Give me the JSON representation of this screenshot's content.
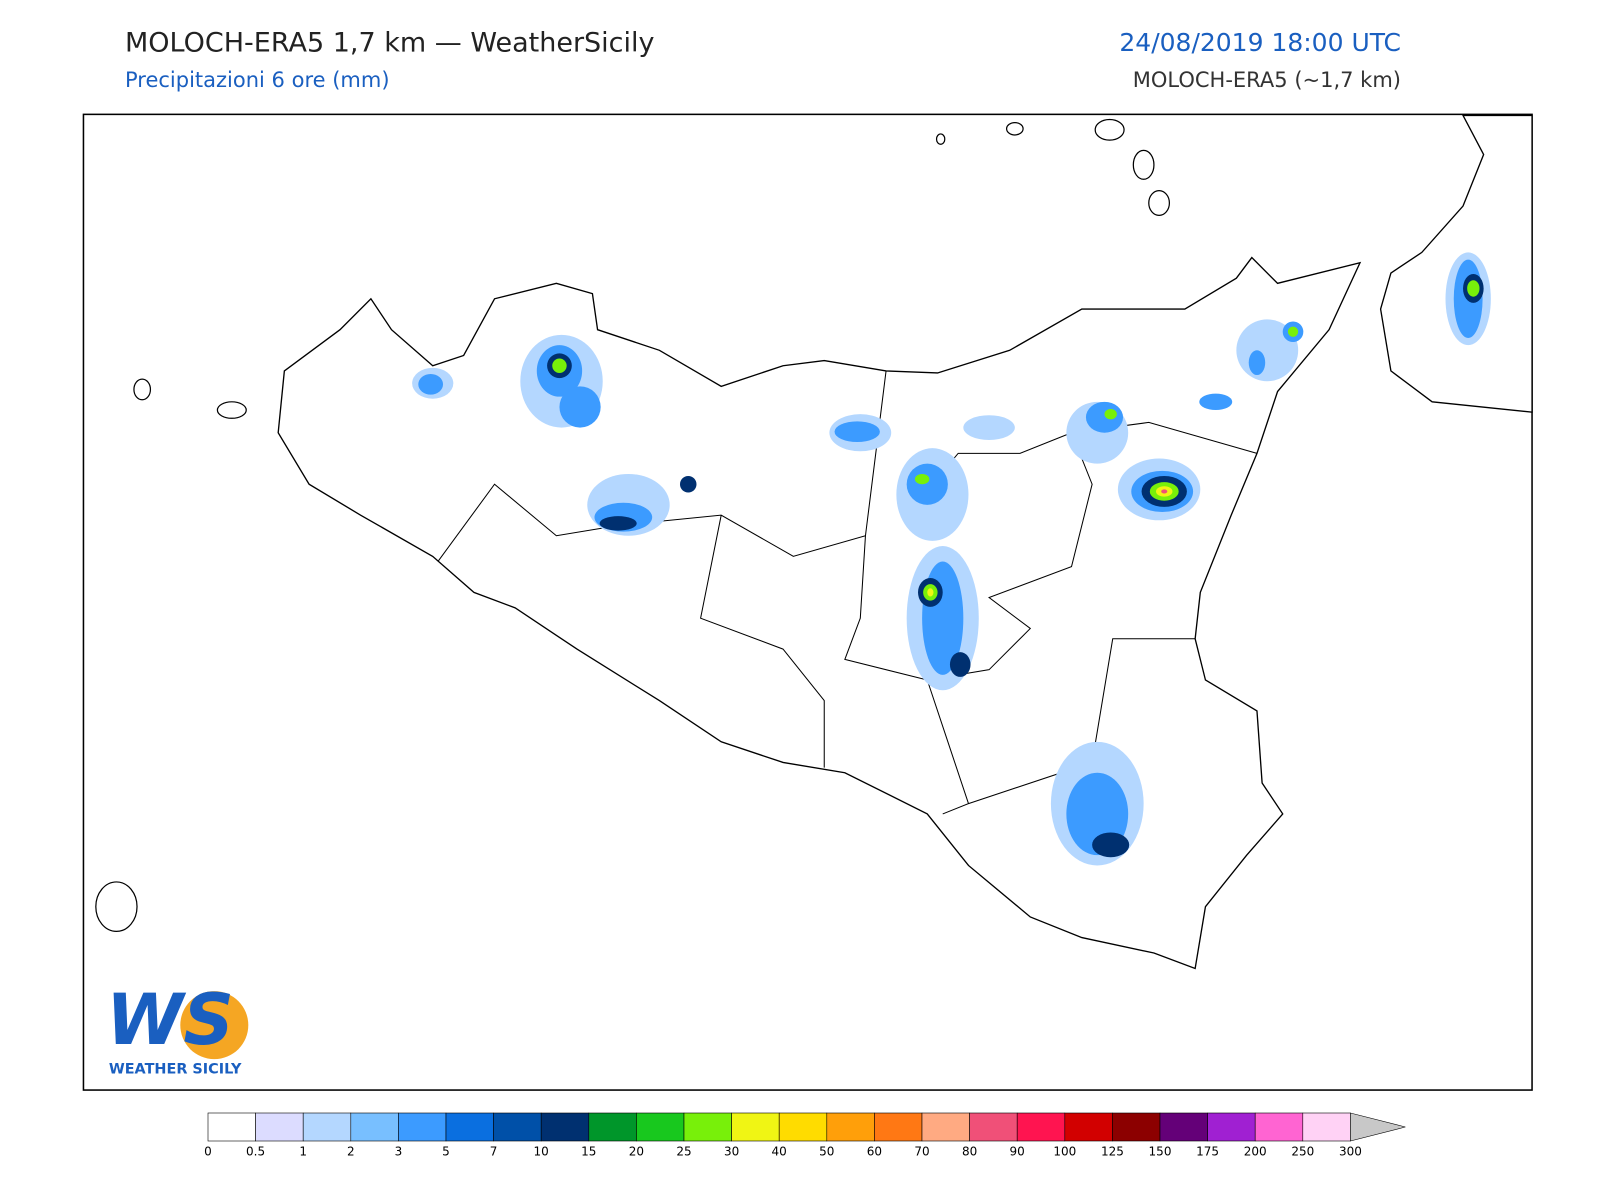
{
  "header": {
    "title": "MOLOCH-ERA5 1,7 km — WeatherSicily",
    "subtitle": "Precipitazioni 6 ore (mm)",
    "datetime": "24/08/2019 18:00 UTC",
    "model": "MOLOCH-ERA5 (~1,7 km)"
  },
  "logo": {
    "letters": "WS",
    "text": "WEATHER SICILY"
  },
  "legend": {
    "ticks": [
      0,
      0.5,
      1,
      2,
      3,
      5,
      7,
      10,
      15,
      20,
      25,
      30,
      40,
      50,
      60,
      70,
      80,
      90,
      100,
      125,
      150,
      175,
      200,
      250,
      300
    ],
    "colors": [
      "#ffffff",
      "#dcdcff",
      "#b4d7ff",
      "#78bfff",
      "#3c9bff",
      "#0a6fe0",
      "#0050a8",
      "#003070",
      "#00962a",
      "#18c81e",
      "#78f00a",
      "#f0f514",
      "#ffdc00",
      "#ff9f0a",
      "#ff7814",
      "#ffaa82",
      "#f05078",
      "#ff1450",
      "#d20000",
      "#8c0000",
      "#640078",
      "#a020d2",
      "#ff64d2",
      "#ffd2f5"
    ],
    "extend_color": "#c8c8c8"
  }
}
